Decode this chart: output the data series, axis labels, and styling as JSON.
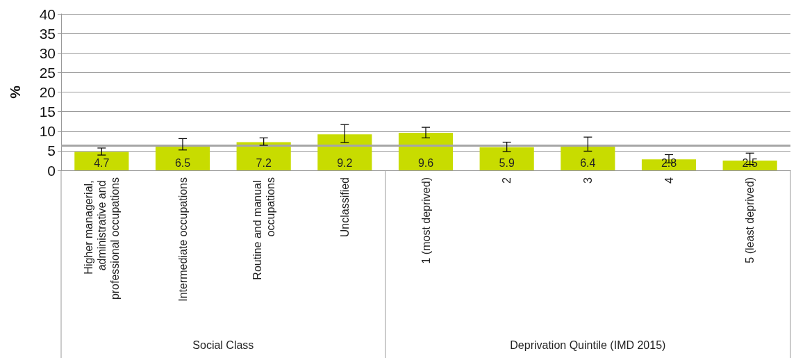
{
  "chart_data": {
    "type": "bar",
    "ylabel": "%",
    "categories": [
      "Higher managerial, administrative and professional occupations",
      "Intermediate occupations",
      "Routine and manual occupations",
      "Unclassified",
      "1 (most deprived)",
      "2",
      "3",
      "4",
      "5 (least deprived)"
    ],
    "values": [
      4.7,
      6.5,
      7.2,
      9.2,
      9.6,
      5.9,
      6.4,
      2.8,
      2.5
    ],
    "errors": [
      [
        3.9,
        5.7
      ],
      [
        5.2,
        8.1
      ],
      [
        6.4,
        8.3
      ],
      [
        7.1,
        11.7
      ],
      [
        8.3,
        11.0
      ],
      [
        4.8,
        7.2
      ],
      [
        4.9,
        8.5
      ],
      [
        1.9,
        4.0
      ],
      [
        1.5,
        4.4
      ]
    ],
    "color": "#c8dc00",
    "data_labels": true,
    "ylim": [
      0,
      40
    ],
    "yticks": [
      0,
      5,
      10,
      15,
      20,
      25,
      30,
      35,
      40
    ],
    "grid": "y",
    "ref_lines": [
      {
        "axis": "y",
        "value": 6.4,
        "color": "#a6a6a6"
      }
    ],
    "annotations": [
      "Social Class",
      "Deprivation Quintile (IMD 2015)"
    ]
  }
}
